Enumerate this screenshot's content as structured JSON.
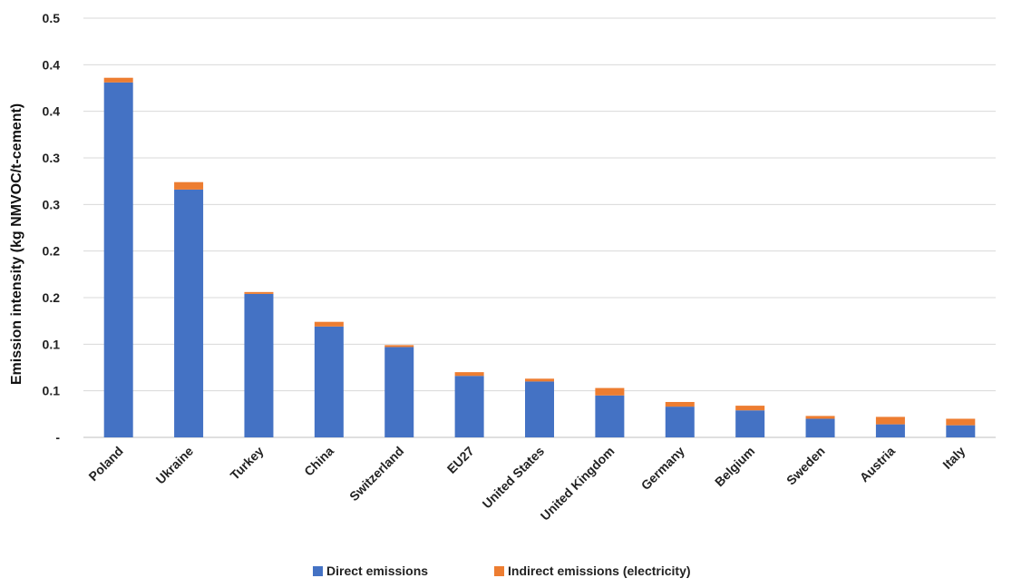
{
  "chart_data": {
    "type": "bar",
    "stacked": true,
    "title": "",
    "xlabel": "",
    "ylabel": "Emission intensity (kg NMVOC/t-cement)",
    "ylim": [
      0,
      0.45
    ],
    "y_tick_values": [
      0,
      0.05,
      0.1,
      0.15,
      0.2,
      0.25,
      0.3,
      0.35,
      0.4,
      0.45
    ],
    "y_tick_labels": [
      "-",
      "0.1",
      "0.1",
      "0.2",
      "0.2",
      "0.3",
      "0.3",
      "0.4",
      "0.4",
      "0.5"
    ],
    "categories": [
      "Poland",
      "Ukraine",
      "Turkey",
      "China",
      "Switzerland",
      "EU27",
      "United States",
      "United Kingdom",
      "Germany",
      "Belgium",
      "Sweden",
      "Austria",
      "Italy"
    ],
    "series": [
      {
        "name": "Direct emissions",
        "color": "#4472C4",
        "values": [
          0.381,
          0.266,
          0.154,
          0.119,
          0.097,
          0.066,
          0.06,
          0.045,
          0.033,
          0.029,
          0.02,
          0.014,
          0.013
        ]
      },
      {
        "name": "Indirect emissions (electricity)",
        "color": "#ED7D31",
        "values": [
          0.005,
          0.008,
          0.002,
          0.005,
          0.002,
          0.004,
          0.003,
          0.008,
          0.005,
          0.005,
          0.003,
          0.008,
          0.007
        ]
      }
    ],
    "grid": true,
    "legend_position": "bottom"
  }
}
